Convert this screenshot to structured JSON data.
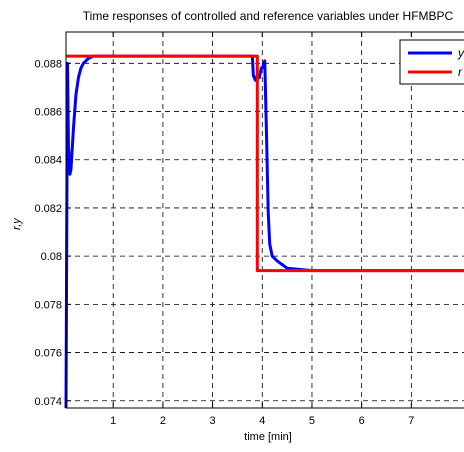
{
  "chart_data": {
    "type": "line",
    "title": "Time responses of controlled and reference variables under HFMBPC",
    "xlabel": "time [min]",
    "ylabel": "r,y",
    "xlim": [
      0.05,
      8.1
    ],
    "ylim": [
      0.0737,
      0.0893
    ],
    "x_ticks": [
      1,
      2,
      3,
      4,
      5,
      6,
      7
    ],
    "x_tick_labels": [
      "1",
      "2",
      "3",
      "4",
      "5",
      "6",
      "7"
    ],
    "y_ticks": [
      0.074,
      0.076,
      0.078,
      0.08,
      0.082,
      0.084,
      0.086,
      0.088
    ],
    "y_tick_labels": [
      "0.074",
      "0.076",
      "0.078",
      "0.08",
      "0.082",
      "0.084",
      "0.086",
      "0.088"
    ],
    "grid": true,
    "legend_position": "top-right",
    "series": [
      {
        "name": "y",
        "color": "#0000ff",
        "x": [
          0.05,
          0.08,
          0.1,
          0.13,
          0.15,
          0.2,
          0.25,
          0.3,
          0.35,
          0.4,
          0.5,
          0.6,
          0.8,
          1.0,
          2.0,
          3.0,
          3.8,
          3.82,
          3.86,
          3.9,
          3.94,
          3.98,
          4.0,
          4.05,
          4.08,
          4.12,
          4.15,
          4.2,
          4.3,
          4.5,
          5.0,
          6.0,
          7.0,
          8.1
        ],
        "y": [
          0.0737,
          0.088,
          0.0845,
          0.0834,
          0.0836,
          0.0853,
          0.0867,
          0.0874,
          0.0878,
          0.088,
          0.0882,
          0.0883,
          0.0883,
          0.0883,
          0.0883,
          0.0883,
          0.0883,
          0.0875,
          0.0873,
          0.0875,
          0.0874,
          0.0878,
          0.0878,
          0.0881,
          0.0855,
          0.0818,
          0.0805,
          0.08,
          0.0798,
          0.0795,
          0.0794,
          0.0794,
          0.0794,
          0.0794
        ]
      },
      {
        "name": "r",
        "color": "#ff0000",
        "x": [
          0.05,
          3.9,
          3.9,
          8.1
        ],
        "y": [
          0.0883,
          0.0883,
          0.0794,
          0.0794
        ]
      }
    ]
  }
}
